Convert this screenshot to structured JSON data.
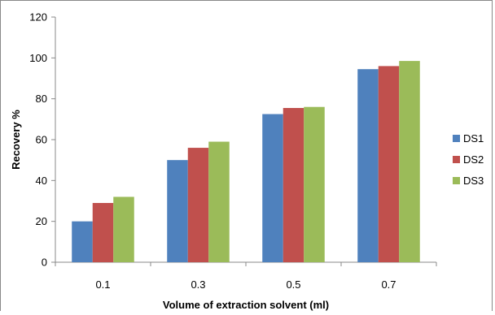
{
  "chart_data": {
    "type": "bar",
    "title": "",
    "xlabel": "Volume of extraction solvent (ml)",
    "ylabel": "Recovery %",
    "categories": [
      "0.1",
      "0.3",
      "0.5",
      "0.7"
    ],
    "series": [
      {
        "name": "DS1",
        "color": "#4F81BD",
        "values": [
          20,
          50,
          72.5,
          94.5
        ]
      },
      {
        "name": "DS2",
        "color": "#C0504D",
        "values": [
          29,
          56,
          75.5,
          96
        ]
      },
      {
        "name": "DS3",
        "color": "#9BBB59",
        "values": [
          32,
          59,
          76,
          98.5
        ]
      }
    ],
    "yticks": [
      "0",
      "20",
      "40",
      "60",
      "80",
      "100",
      "120"
    ],
    "ylim": [
      0,
      120
    ],
    "grid": false,
    "legend_position": "right"
  }
}
